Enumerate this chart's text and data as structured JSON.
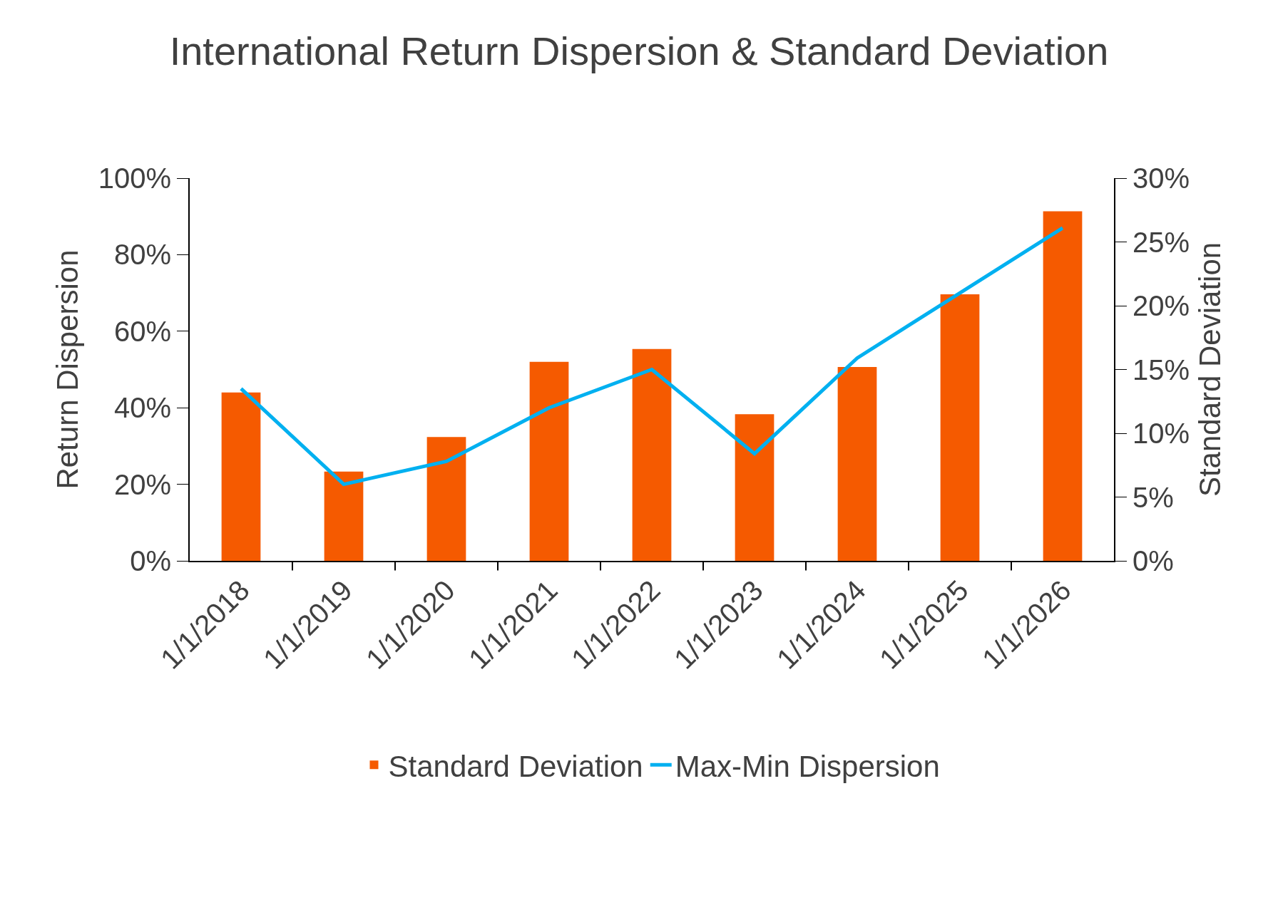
{
  "chart_data": {
    "type": "bar",
    "title": "International Return Dispersion & Standard Deviation",
    "ylabel": "Return Dispersion",
    "y2label": "Standard Deviation",
    "categories": [
      "1/1/2018",
      "1/1/2019",
      "1/1/2020",
      "1/1/2021",
      "1/1/2022",
      "1/1/2023",
      "1/1/2024",
      "1/1/2025",
      "1/1/2026"
    ],
    "series": [
      {
        "name": "Standard Deviation",
        "axis": "y2",
        "color": "#f55a00",
        "values": [
          13.2,
          7.0,
          9.7,
          15.6,
          16.6,
          11.5,
          15.2,
          20.9,
          27.4
        ]
      },
      {
        "name": "Max-Min Dispersion",
        "type": "line",
        "axis": "y",
        "color": "#00b0f0",
        "line_style": "solid",
        "marker": "none",
        "values": [
          45,
          20,
          26,
          40,
          50,
          28,
          53,
          70,
          87
        ]
      }
    ],
    "ylim": [
      0,
      100
    ],
    "yticks": [
      {
        "value": 0,
        "label": "0%"
      },
      {
        "value": 20,
        "label": "20%"
      },
      {
        "value": 40,
        "label": "40%"
      },
      {
        "value": 60,
        "label": "60%"
      },
      {
        "value": 80,
        "label": "80%"
      },
      {
        "value": 100,
        "label": "100%"
      }
    ],
    "y2lim": [
      0,
      30
    ],
    "y2ticks": [
      {
        "value": 0,
        "label": "0%"
      },
      {
        "value": 5,
        "label": "5%"
      },
      {
        "value": 10,
        "label": "10%"
      },
      {
        "value": 15,
        "label": "15%"
      },
      {
        "value": 20,
        "label": "20%"
      },
      {
        "value": 25,
        "label": "25%"
      },
      {
        "value": 30,
        "label": "30%"
      }
    ],
    "legend": "bottom"
  }
}
